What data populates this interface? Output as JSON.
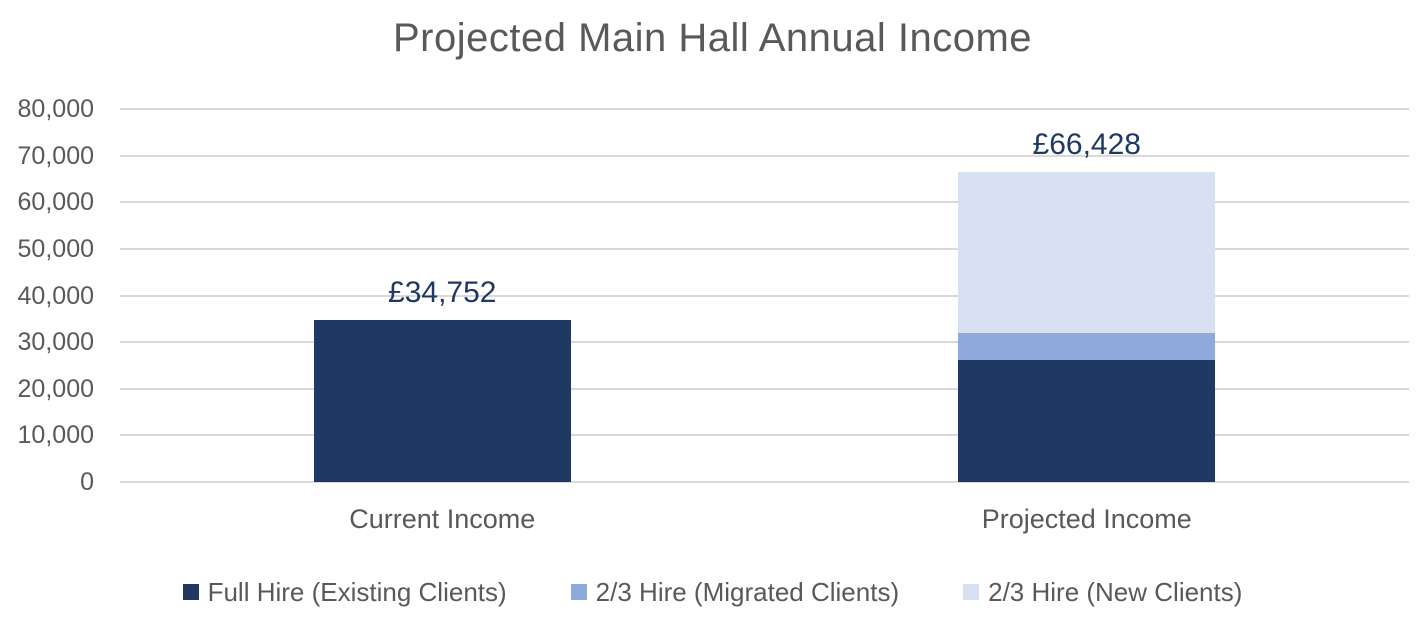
{
  "title": "Projected Main Hall Annual Income",
  "chart_data": {
    "type": "bar",
    "stacked": true,
    "title": "Projected Main Hall Annual Income",
    "categories": [
      "Current Income",
      "Projected Income"
    ],
    "series": [
      {
        "name": "Full Hire (Existing Clients)",
        "color": "#1F3864",
        "values": [
          34752,
          26064
        ]
      },
      {
        "name": "2/3 Hire (Migrated Clients)",
        "color": "#8EA9DB",
        "values": [
          0,
          5792
        ]
      },
      {
        "name": "2/3 Hire (New Clients)",
        "color": "#D7E1F2",
        "values": [
          0,
          34572
        ]
      }
    ],
    "totals": [
      34752,
      66428
    ],
    "total_labels": [
      "£34,752",
      "£66,428"
    ],
    "xlabel": "",
    "ylabel": "",
    "ylim": [
      0,
      80000
    ],
    "ytick_step": 10000,
    "ytick_labels": [
      "0",
      "10,000",
      "20,000",
      "30,000",
      "40,000",
      "50,000",
      "60,000",
      "70,000",
      "80,000"
    ],
    "grid": true,
    "legend_position": "bottom"
  },
  "colors": {
    "title_text": "#595959",
    "axis_text": "#595959",
    "data_label_text": "#1F3864",
    "gridline": "#D9D9D9",
    "background": "#FFFFFF"
  }
}
